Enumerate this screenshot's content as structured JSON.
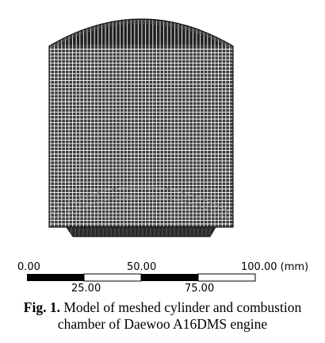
{
  "scale_bar": {
    "top_labels": [
      "0.00",
      "50.00",
      "100.00 (mm)"
    ],
    "bottom_labels": [
      "25.00",
      "75.00"
    ]
  },
  "caption": {
    "label": "Fig. 1.",
    "line1": "Model of meshed cylinder and combustion",
    "line2": "chamber of Daewoo A16DMS engine"
  }
}
